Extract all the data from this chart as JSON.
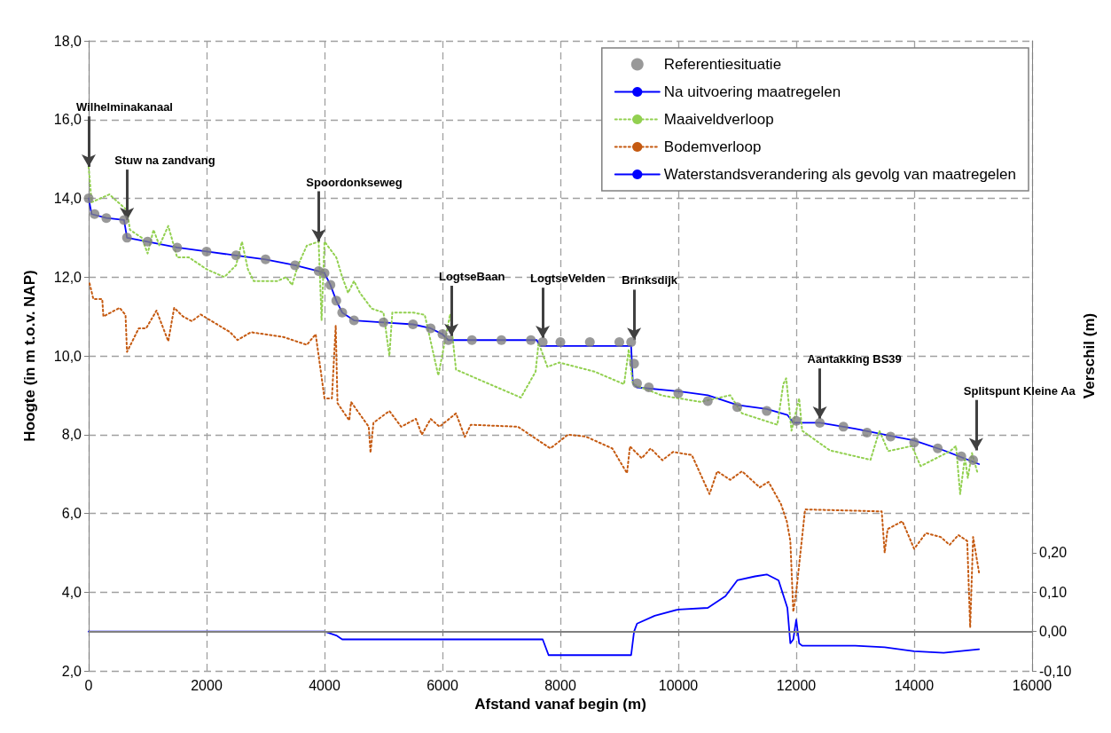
{
  "chart_data": {
    "type": "line",
    "xlabel": "Afstand vanaf begin (m)",
    "ylabel": "Hoogte (in m t.o.v. NAP)",
    "y2label": "Verschil (m)",
    "xlim": [
      0,
      16000
    ],
    "xticks": [
      0,
      2000,
      4000,
      6000,
      8000,
      10000,
      12000,
      14000,
      16000
    ],
    "ylim": [
      2,
      18
    ],
    "yticks": [
      {
        "value": 2,
        "label": "2,0"
      },
      {
        "value": 4,
        "label": "4,0"
      },
      {
        "value": 6,
        "label": "6,0"
      },
      {
        "value": 8,
        "label": "8,0"
      },
      {
        "value": 10,
        "label": "10,0"
      },
      {
        "value": 12,
        "label": "12,0"
      },
      {
        "value": 14,
        "label": "14,0"
      },
      {
        "value": 16,
        "label": "16,0"
      },
      {
        "value": 18,
        "label": "18,0"
      }
    ],
    "y2lim": [
      -0.1,
      1.5
    ],
    "y2ticks": [
      {
        "value": -0.1,
        "label": "-0,10"
      },
      {
        "value": 0,
        "label": "0,00"
      },
      {
        "value": 0.1,
        "label": "0,10"
      },
      {
        "value": 0.2,
        "label": "0,20"
      }
    ],
    "grid": true,
    "legend": "top right",
    "ref_lines": [
      {
        "axis": "y2",
        "value": 0,
        "color": "#808080",
        "line_style": "solid"
      }
    ],
    "annotations": [
      {
        "text": "Wilhelminakanaal",
        "x": 0,
        "y": 14.8
      },
      {
        "text": "Stuw na zandvang",
        "x": 650,
        "y": 13.45
      },
      {
        "text": "Spoordonkseweg",
        "x": 3900,
        "y": 12.9
      },
      {
        "text": "LogtseBaan",
        "x": 6150,
        "y": 10.5
      },
      {
        "text": "LogtseVelden",
        "x": 7700,
        "y": 10.45
      },
      {
        "text": "Brinksdijk",
        "x": 9250,
        "y": 10.4
      },
      {
        "text": "Aantakking BS39",
        "x": 12400,
        "y": 8.4
      },
      {
        "text": "Splitspunt Kleine Aa",
        "x": 15050,
        "y": 7.6
      }
    ],
    "series": [
      {
        "name": "Referentiesituatie",
        "type": "scatter",
        "marker": "circle",
        "color": "#808080",
        "x": [
          0,
          100,
          300,
          600,
          650,
          1000,
          1500,
          2000,
          2500,
          3000,
          3500,
          3900,
          4000,
          4100,
          4200,
          4300,
          4500,
          5000,
          5500,
          5800,
          6000,
          6100,
          6500,
          7000,
          7500,
          7700,
          8000,
          8500,
          9000,
          9200,
          9250,
          9300,
          9500,
          10000,
          10500,
          11000,
          11500,
          12000,
          12400,
          12800,
          13200,
          13600,
          14000,
          14400,
          14800,
          15000
        ],
        "values": [
          14.0,
          13.6,
          13.5,
          13.45,
          13.0,
          12.9,
          12.75,
          12.65,
          12.55,
          12.45,
          12.3,
          12.15,
          12.1,
          11.8,
          11.4,
          11.1,
          10.9,
          10.85,
          10.8,
          10.7,
          10.55,
          10.4,
          10.4,
          10.4,
          10.4,
          10.35,
          10.35,
          10.35,
          10.35,
          10.35,
          9.8,
          9.3,
          9.2,
          9.05,
          8.85,
          8.7,
          8.6,
          8.35,
          8.3,
          8.2,
          8.05,
          7.95,
          7.8,
          7.65,
          7.45,
          7.35
        ]
      },
      {
        "name": "Na uitvoering maatregelen",
        "color": "#0000ff",
        "line_style": "solid",
        "x": [
          0,
          50,
          300,
          600,
          650,
          1000,
          1500,
          2000,
          2500,
          3000,
          3500,
          3900,
          4000,
          4100,
          4200,
          4300,
          4500,
          5000,
          5500,
          5800,
          6000,
          6100,
          7600,
          7650,
          9200,
          9230,
          9300,
          10000,
          10500,
          11000,
          11500,
          11850,
          11950,
          12400,
          13000,
          14000,
          14500,
          15100
        ],
        "values": [
          14.0,
          13.6,
          13.5,
          13.45,
          13.0,
          12.9,
          12.75,
          12.65,
          12.55,
          12.45,
          12.3,
          12.15,
          12.1,
          11.8,
          11.4,
          11.1,
          10.9,
          10.85,
          10.8,
          10.7,
          10.55,
          10.4,
          10.4,
          10.25,
          10.25,
          9.3,
          9.2,
          9.1,
          9.0,
          8.75,
          8.65,
          8.5,
          8.3,
          8.3,
          8.15,
          7.85,
          7.6,
          7.25
        ]
      },
      {
        "name": "Maaiveldverloop",
        "color": "#92d050",
        "line_style": "dotted",
        "x": [
          0,
          50,
          200,
          350,
          500,
          650,
          700,
          900,
          1000,
          1100,
          1200,
          1350,
          1500,
          1700,
          2000,
          2300,
          2500,
          2600,
          2700,
          2800,
          3000,
          3200,
          3350,
          3450,
          3550,
          3700,
          3900,
          3950,
          4000,
          4200,
          4300,
          4400,
          4500,
          4600,
          4800,
          5000,
          5100,
          5150,
          5500,
          5700,
          5930,
          6130,
          6230,
          7330,
          7580,
          7630,
          7780,
          7980,
          8580,
          9080,
          9160,
          9230,
          9730,
          10380,
          10880,
          11080,
          11680,
          11780,
          11830,
          11920,
          12050,
          12100,
          12570,
          13260,
          13410,
          13560,
          13960,
          14110,
          14610,
          14710,
          14780,
          14860,
          14910,
          14980,
          15080
        ],
        "values": [
          14.8,
          13.9,
          14.0,
          14.1,
          13.9,
          13.7,
          13.2,
          13.0,
          12.6,
          13.2,
          12.8,
          13.3,
          12.5,
          12.5,
          12.2,
          12.0,
          12.3,
          12.9,
          12.2,
          11.9,
          11.9,
          11.9,
          12.0,
          11.8,
          12.3,
          12.8,
          12.9,
          10.9,
          12.9,
          12.5,
          12.0,
          11.6,
          11.9,
          11.6,
          11.2,
          11.1,
          10.0,
          11.1,
          11.1,
          11.04,
          9.5,
          11.06,
          9.65,
          8.94,
          9.6,
          10.33,
          9.72,
          9.83,
          9.6,
          9.28,
          10.17,
          9.28,
          8.99,
          8.83,
          9.0,
          8.54,
          8.25,
          9.28,
          9.43,
          8.1,
          8.92,
          8.1,
          7.6,
          7.36,
          8.1,
          7.58,
          7.71,
          7.2,
          7.58,
          7.71,
          6.49,
          7.42,
          6.9,
          7.53,
          7.0
        ]
      },
      {
        "name": "Bodemverloop",
        "color": "#c55a11",
        "line_style": "dotted",
        "x": [
          15,
          80,
          230,
          250,
          525,
          625,
          650,
          850,
          975,
          1150,
          1350,
          1450,
          1600,
          1750,
          1900,
          2400,
          2525,
          2750,
          3300,
          3700,
          3850,
          4000,
          4125,
          4190,
          4220,
          4420,
          4450,
          4750,
          4780,
          4830,
          5100,
          5300,
          5550,
          5650,
          5800,
          5950,
          6230,
          6380,
          6480,
          7280,
          7830,
          8130,
          8430,
          8880,
          9130,
          9180,
          9380,
          9530,
          9730,
          9910,
          10230,
          10530,
          10660,
          10880,
          11080,
          11380,
          11530,
          11740,
          11840,
          11900,
          11950,
          12000,
          12150,
          13450,
          13500,
          13550,
          13800,
          14000,
          14200,
          14450,
          14600,
          14750,
          14900,
          14950,
          15000,
          15100
        ],
        "values": [
          11.84,
          11.44,
          11.44,
          11.0,
          11.22,
          11.04,
          10.1,
          10.7,
          10.7,
          11.15,
          10.37,
          11.22,
          11.0,
          10.88,
          11.05,
          10.6,
          10.4,
          10.6,
          10.48,
          10.28,
          10.55,
          8.92,
          8.92,
          10.77,
          8.8,
          8.36,
          8.83,
          8.2,
          7.54,
          8.3,
          8.6,
          8.2,
          8.4,
          8.0,
          8.4,
          8.2,
          8.54,
          7.94,
          8.25,
          8.2,
          7.65,
          8.0,
          7.95,
          7.65,
          7.02,
          7.7,
          7.4,
          7.65,
          7.35,
          7.56,
          7.48,
          6.49,
          7.07,
          6.85,
          7.07,
          6.66,
          6.8,
          6.24,
          5.8,
          5.3,
          3.5,
          4.0,
          6.1,
          6.05,
          5.0,
          5.6,
          5.8,
          5.1,
          5.5,
          5.4,
          5.2,
          5.45,
          5.3,
          3.1,
          5.4,
          4.5
        ]
      },
      {
        "name": "Waterstandsverandering als gevolg van maatregelen",
        "color": "#0000ff",
        "line_style": "solid",
        "axis": "y2",
        "x": [
          0,
          4000,
          4200,
          4300,
          7700,
          7800,
          9200,
          9250,
          9300,
          9600,
          10000,
          10500,
          10800,
          11000,
          11300,
          11500,
          11700,
          11850,
          11900,
          11950,
          12000,
          12050,
          12100,
          13000,
          13500,
          14000,
          14500,
          15100
        ],
        "values": [
          0.0,
          0.0,
          -0.01,
          -0.02,
          -0.02,
          -0.06,
          -0.06,
          0.0,
          0.02,
          0.04,
          0.056,
          0.06,
          0.09,
          0.13,
          0.14,
          0.145,
          0.13,
          0.06,
          -0.03,
          -0.02,
          0.03,
          -0.03,
          -0.036,
          -0.036,
          -0.04,
          -0.05,
          -0.054,
          -0.045
        ]
      }
    ]
  }
}
